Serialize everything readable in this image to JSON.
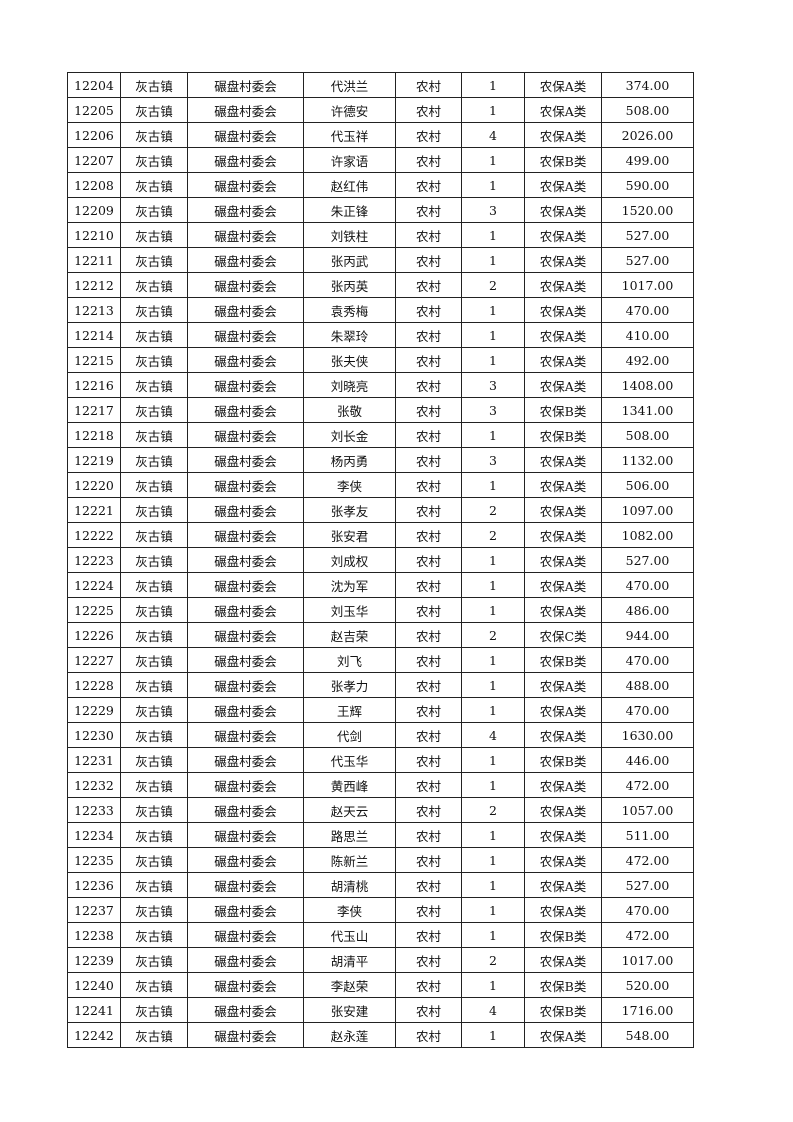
{
  "table": {
    "rows": [
      [
        "12204",
        "灰古镇",
        "碾盘村委会",
        "代洪兰",
        "农村",
        "1",
        "农保A类",
        "374.00"
      ],
      [
        "12205",
        "灰古镇",
        "碾盘村委会",
        "许德安",
        "农村",
        "1",
        "农保A类",
        "508.00"
      ],
      [
        "12206",
        "灰古镇",
        "碾盘村委会",
        "代玉祥",
        "农村",
        "4",
        "农保A类",
        "2026.00"
      ],
      [
        "12207",
        "灰古镇",
        "碾盘村委会",
        "许家语",
        "农村",
        "1",
        "农保B类",
        "499.00"
      ],
      [
        "12208",
        "灰古镇",
        "碾盘村委会",
        "赵红伟",
        "农村",
        "1",
        "农保A类",
        "590.00"
      ],
      [
        "12209",
        "灰古镇",
        "碾盘村委会",
        "朱正锋",
        "农村",
        "3",
        "农保A类",
        "1520.00"
      ],
      [
        "12210",
        "灰古镇",
        "碾盘村委会",
        "刘铁柱",
        "农村",
        "1",
        "农保A类",
        "527.00"
      ],
      [
        "12211",
        "灰古镇",
        "碾盘村委会",
        "张丙武",
        "农村",
        "1",
        "农保A类",
        "527.00"
      ],
      [
        "12212",
        "灰古镇",
        "碾盘村委会",
        "张丙英",
        "农村",
        "2",
        "农保A类",
        "1017.00"
      ],
      [
        "12213",
        "灰古镇",
        "碾盘村委会",
        "袁秀梅",
        "农村",
        "1",
        "农保A类",
        "470.00"
      ],
      [
        "12214",
        "灰古镇",
        "碾盘村委会",
        "朱翠玲",
        "农村",
        "1",
        "农保A类",
        "410.00"
      ],
      [
        "12215",
        "灰古镇",
        "碾盘村委会",
        "张夫侠",
        "农村",
        "1",
        "农保A类",
        "492.00"
      ],
      [
        "12216",
        "灰古镇",
        "碾盘村委会",
        "刘晓亮",
        "农村",
        "3",
        "农保A类",
        "1408.00"
      ],
      [
        "12217",
        "灰古镇",
        "碾盘村委会",
        "张敬",
        "农村",
        "3",
        "农保B类",
        "1341.00"
      ],
      [
        "12218",
        "灰古镇",
        "碾盘村委会",
        "刘长金",
        "农村",
        "1",
        "农保B类",
        "508.00"
      ],
      [
        "12219",
        "灰古镇",
        "碾盘村委会",
        "杨丙勇",
        "农村",
        "3",
        "农保A类",
        "1132.00"
      ],
      [
        "12220",
        "灰古镇",
        "碾盘村委会",
        "李侠",
        "农村",
        "1",
        "农保A类",
        "506.00"
      ],
      [
        "12221",
        "灰古镇",
        "碾盘村委会",
        "张孝友",
        "农村",
        "2",
        "农保A类",
        "1097.00"
      ],
      [
        "12222",
        "灰古镇",
        "碾盘村委会",
        "张安君",
        "农村",
        "2",
        "农保A类",
        "1082.00"
      ],
      [
        "12223",
        "灰古镇",
        "碾盘村委会",
        "刘成权",
        "农村",
        "1",
        "农保A类",
        "527.00"
      ],
      [
        "12224",
        "灰古镇",
        "碾盘村委会",
        "沈为军",
        "农村",
        "1",
        "农保A类",
        "470.00"
      ],
      [
        "12225",
        "灰古镇",
        "碾盘村委会",
        "刘玉华",
        "农村",
        "1",
        "农保A类",
        "486.00"
      ],
      [
        "12226",
        "灰古镇",
        "碾盘村委会",
        "赵吉荣",
        "农村",
        "2",
        "农保C类",
        "944.00"
      ],
      [
        "12227",
        "灰古镇",
        "碾盘村委会",
        "刘飞",
        "农村",
        "1",
        "农保B类",
        "470.00"
      ],
      [
        "12228",
        "灰古镇",
        "碾盘村委会",
        "张孝力",
        "农村",
        "1",
        "农保A类",
        "488.00"
      ],
      [
        "12229",
        "灰古镇",
        "碾盘村委会",
        "王辉",
        "农村",
        "1",
        "农保A类",
        "470.00"
      ],
      [
        "12230",
        "灰古镇",
        "碾盘村委会",
        "代剑",
        "农村",
        "4",
        "农保A类",
        "1630.00"
      ],
      [
        "12231",
        "灰古镇",
        "碾盘村委会",
        "代玉华",
        "农村",
        "1",
        "农保B类",
        "446.00"
      ],
      [
        "12232",
        "灰古镇",
        "碾盘村委会",
        "黄西峰",
        "农村",
        "1",
        "农保A类",
        "472.00"
      ],
      [
        "12233",
        "灰古镇",
        "碾盘村委会",
        "赵天云",
        "农村",
        "2",
        "农保A类",
        "1057.00"
      ],
      [
        "12234",
        "灰古镇",
        "碾盘村委会",
        "路思兰",
        "农村",
        "1",
        "农保A类",
        "511.00"
      ],
      [
        "12235",
        "灰古镇",
        "碾盘村委会",
        "陈新兰",
        "农村",
        "1",
        "农保A类",
        "472.00"
      ],
      [
        "12236",
        "灰古镇",
        "碾盘村委会",
        "胡清桃",
        "农村",
        "1",
        "农保A类",
        "527.00"
      ],
      [
        "12237",
        "灰古镇",
        "碾盘村委会",
        "李侠",
        "农村",
        "1",
        "农保A类",
        "470.00"
      ],
      [
        "12238",
        "灰古镇",
        "碾盘村委会",
        "代玉山",
        "农村",
        "1",
        "农保B类",
        "472.00"
      ],
      [
        "12239",
        "灰古镇",
        "碾盘村委会",
        "胡清平",
        "农村",
        "2",
        "农保A类",
        "1017.00"
      ],
      [
        "12240",
        "灰古镇",
        "碾盘村委会",
        "李赵荣",
        "农村",
        "1",
        "农保B类",
        "520.00"
      ],
      [
        "12241",
        "灰古镇",
        "碾盘村委会",
        "张安建",
        "农村",
        "4",
        "农保B类",
        "1716.00"
      ],
      [
        "12242",
        "灰古镇",
        "碾盘村委会",
        "赵永莲",
        "农村",
        "1",
        "农保A类",
        "548.00"
      ]
    ]
  }
}
